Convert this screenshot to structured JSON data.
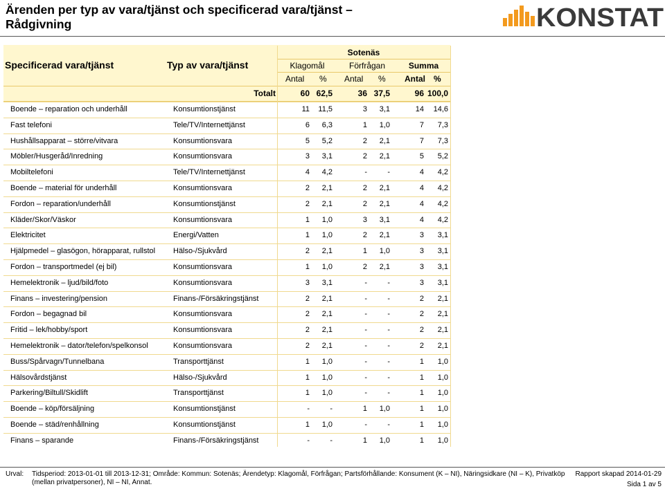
{
  "page": {
    "title_line1": "Ärenden per typ av vara/tjänst och specificerad vara/tjänst –",
    "title_line2": "Rådgivning",
    "logo_text": "KONSTAT"
  },
  "header": {
    "col_spec": "Specificerad vara/tjänst",
    "col_typ": "Typ av vara/tjänst",
    "region": "Sotenäs",
    "groups": [
      "Klagomål",
      "Förfrågan",
      "Summa"
    ],
    "sub_antal": "Antal",
    "sub_pct": "%",
    "total_label": "Totalt",
    "totals": [
      "60",
      "62,5",
      "36",
      "37,5",
      "96",
      "100,0"
    ]
  },
  "rows": [
    {
      "spec": "Boende – reparation och underhåll",
      "typ": "Konsumtionstjänst",
      "v": [
        "11",
        "11,5",
        "3",
        "3,1",
        "14",
        "14,6"
      ]
    },
    {
      "spec": "Fast telefoni",
      "typ": "Tele/TV/Internettjänst",
      "v": [
        "6",
        "6,3",
        "1",
        "1,0",
        "7",
        "7,3"
      ]
    },
    {
      "spec": "Hushållsapparat – större/vitvara",
      "typ": "Konsumtionsvara",
      "v": [
        "5",
        "5,2",
        "2",
        "2,1",
        "7",
        "7,3"
      ]
    },
    {
      "spec": "Möbler/Husgeråd/Inredning",
      "typ": "Konsumtionsvara",
      "v": [
        "3",
        "3,1",
        "2",
        "2,1",
        "5",
        "5,2"
      ]
    },
    {
      "spec": "Mobiltelefoni",
      "typ": "Tele/TV/Internettjänst",
      "v": [
        "4",
        "4,2",
        "-",
        "-",
        "4",
        "4,2"
      ]
    },
    {
      "spec": "Boende – material för underhåll",
      "typ": "Konsumtionsvara",
      "v": [
        "2",
        "2,1",
        "2",
        "2,1",
        "4",
        "4,2"
      ]
    },
    {
      "spec": "Fordon – reparation/underhåll",
      "typ": "Konsumtionstjänst",
      "v": [
        "2",
        "2,1",
        "2",
        "2,1",
        "4",
        "4,2"
      ]
    },
    {
      "spec": "Kläder/Skor/Väskor",
      "typ": "Konsumtionsvara",
      "v": [
        "1",
        "1,0",
        "3",
        "3,1",
        "4",
        "4,2"
      ]
    },
    {
      "spec": "Elektricitet",
      "typ": "Energi/Vatten",
      "v": [
        "1",
        "1,0",
        "2",
        "2,1",
        "3",
        "3,1"
      ]
    },
    {
      "spec": "Hjälpmedel – glasögon, hörapparat, rullstol",
      "typ": "Hälso-/Sjukvård",
      "v": [
        "2",
        "2,1",
        "1",
        "1,0",
        "3",
        "3,1"
      ]
    },
    {
      "spec": "Fordon – transportmedel (ej bil)",
      "typ": "Konsumtionsvara",
      "v": [
        "1",
        "1,0",
        "2",
        "2,1",
        "3",
        "3,1"
      ]
    },
    {
      "spec": "Hemelektronik – ljud/bild/foto",
      "typ": "Konsumtionsvara",
      "v": [
        "3",
        "3,1",
        "-",
        "-",
        "3",
        "3,1"
      ]
    },
    {
      "spec": "Finans – investering/pension",
      "typ": "Finans-/Försäkringstjänst",
      "v": [
        "2",
        "2,1",
        "-",
        "-",
        "2",
        "2,1"
      ]
    },
    {
      "spec": "Fordon – begagnad bil",
      "typ": "Konsumtionsvara",
      "v": [
        "2",
        "2,1",
        "-",
        "-",
        "2",
        "2,1"
      ]
    },
    {
      "spec": "Fritid – lek/hobby/sport",
      "typ": "Konsumtionsvara",
      "v": [
        "2",
        "2,1",
        "-",
        "-",
        "2",
        "2,1"
      ]
    },
    {
      "spec": "Hemelektronik – dator/telefon/spelkonsol",
      "typ": "Konsumtionsvara",
      "v": [
        "2",
        "2,1",
        "-",
        "-",
        "2",
        "2,1"
      ]
    },
    {
      "spec": "Buss/Spårvagn/Tunnelbana",
      "typ": "Transporttjänst",
      "v": [
        "1",
        "1,0",
        "-",
        "-",
        "1",
        "1,0"
      ]
    },
    {
      "spec": "Hälsovårdstjänst",
      "typ": "Hälso-/Sjukvård",
      "v": [
        "1",
        "1,0",
        "-",
        "-",
        "1",
        "1,0"
      ]
    },
    {
      "spec": "Parkering/Biltull/Skidlift",
      "typ": "Transporttjänst",
      "v": [
        "1",
        "1,0",
        "-",
        "-",
        "1",
        "1,0"
      ]
    },
    {
      "spec": "Boende – köp/försäljning",
      "typ": "Konsumtionstjänst",
      "v": [
        "-",
        "-",
        "1",
        "1,0",
        "1",
        "1,0"
      ]
    },
    {
      "spec": "Boende – städ/renhållning",
      "typ": "Konsumtionstjänst",
      "v": [
        "1",
        "1,0",
        "-",
        "-",
        "1",
        "1,0"
      ]
    },
    {
      "spec": "Finans – sparande",
      "typ": "Finans-/Försäkringstjänst",
      "v": [
        "-",
        "-",
        "1",
        "1,0",
        "1",
        "1,0"
      ]
    }
  ],
  "footer": {
    "urval_label": "Urval:",
    "urval_line1": "Tidsperiod: 2013-01-01 till 2013-12-31; Område: Kommun: Sotenäs; Ärendetyp: Klagomål, Förfrågan; Partsförhållande: Konsument (K – NI), Näringsidkare (NI – K), Privatköp",
    "urval_line2": "(mellan privatpersoner), NI – NI, Annat.",
    "created": "Rapport skapad 2014-01-29",
    "page": "Sida 1 av 5"
  },
  "colors": {
    "header_bg": "#fff7cf",
    "grid": "#f0d98e",
    "logo_orange": "#f39a1e",
    "logo_dark": "#3a3a3a"
  }
}
